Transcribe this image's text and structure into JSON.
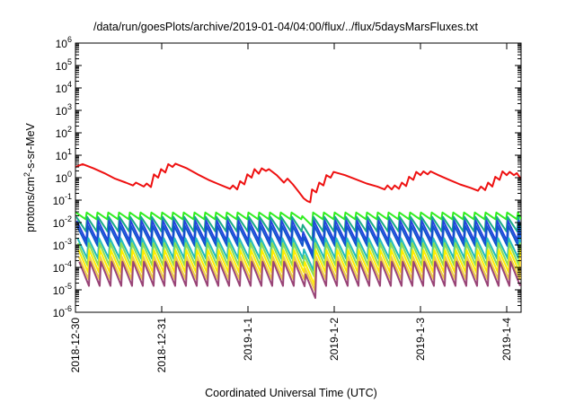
{
  "chart_data": {
    "type": "line",
    "title": "/data/run/goesPlots/archive/2019-01-04/04:00/flux/../flux/5daysMarsFluxes.txt",
    "xlabel": "Coordinated Universal Time (UTC)",
    "ylabel": {
      "prefix": "protons/cm",
      "superscript": "2",
      "suffix": "-s-sr-MeV"
    },
    "yscale": "log",
    "ylim": [
      1e-06,
      1000000.0
    ],
    "yticks": [
      {
        "value": 1e-06,
        "exp": "-6"
      },
      {
        "value": 1e-05,
        "exp": "-5"
      },
      {
        "value": 0.0001,
        "exp": "-4"
      },
      {
        "value": 0.001,
        "exp": "-3"
      },
      {
        "value": 0.01,
        "exp": "-2"
      },
      {
        "value": 0.1,
        "exp": "-1"
      },
      {
        "value": 1,
        "exp": "0"
      },
      {
        "value": 10,
        "exp": "1"
      },
      {
        "value": 100,
        "exp": "2"
      },
      {
        "value": 1000,
        "exp": "3"
      },
      {
        "value": 10000,
        "exp": "4"
      },
      {
        "value": 100000,
        "exp": "5"
      },
      {
        "value": 1000000,
        "exp": "6"
      }
    ],
    "tick_base": "10",
    "xlim": [
      "2018-12-30T00:00",
      "2019-01-04T04:00"
    ],
    "xticks": [
      {
        "label": "2018-12-30",
        "t": "2018-12-30T00:00"
      },
      {
        "label": "2018-12-31",
        "t": "2018-12-31T00:00"
      },
      {
        "label": "2019-1-1",
        "t": "2019-01-01T00:00"
      },
      {
        "label": "2019-1-2",
        "t": "2019-01-02T00:00"
      },
      {
        "label": "2019-1-3",
        "t": "2019-01-03T00:00"
      },
      {
        "label": "2019-1-4",
        "t": "2019-01-04T00:00"
      }
    ],
    "grid": false,
    "legend": "none",
    "series": [
      {
        "color": "#ee1111",
        "points": [
          [
            "2018-12-30T00:00",
            3.0
          ],
          [
            "2018-12-30T02:00",
            4.0
          ],
          [
            "2018-12-30T05:00",
            2.6
          ],
          [
            "2018-12-30T08:00",
            1.6
          ],
          [
            "2018-12-30T11:00",
            0.9
          ],
          [
            "2018-12-30T14:00",
            0.6
          ],
          [
            "2018-12-30T16:00",
            0.45
          ],
          [
            "2018-12-30T16:50",
            0.6
          ],
          [
            "2018-12-30T19:00",
            0.4
          ],
          [
            "2018-12-30T19:50",
            0.55
          ],
          [
            "2018-12-30T21:00",
            0.38
          ],
          [
            "2018-12-30T21:50",
            1.4
          ],
          [
            "2018-12-30T23:00",
            1.0
          ],
          [
            "2018-12-30T23:50",
            2.4
          ],
          [
            "2018-12-31T01:00",
            1.7
          ],
          [
            "2018-12-31T01:50",
            4.0
          ],
          [
            "2018-12-31T03:00",
            3.0
          ],
          [
            "2018-12-31T03:50",
            4.2
          ],
          [
            "2018-12-31T07:00",
            2.6
          ],
          [
            "2018-12-31T10:00",
            1.4
          ],
          [
            "2018-12-31T13:00",
            0.8
          ],
          [
            "2018-12-31T16:00",
            0.5
          ],
          [
            "2018-12-31T19:00",
            0.32
          ],
          [
            "2018-12-31T19:50",
            0.45
          ],
          [
            "2018-12-31T21:00",
            0.3
          ],
          [
            "2018-12-31T21:50",
            0.7
          ],
          [
            "2018-12-31T23:00",
            0.5
          ],
          [
            "2018-12-31T23:50",
            1.4
          ],
          [
            "2019-01-01T01:00",
            1.0
          ],
          [
            "2019-01-01T01:50",
            2.4
          ],
          [
            "2019-01-01T03:00",
            1.5
          ],
          [
            "2019-01-01T03:50",
            2.6
          ],
          [
            "2019-01-01T05:00",
            2.0
          ],
          [
            "2019-01-01T05:50",
            2.4
          ],
          [
            "2019-01-01T08:00",
            1.3
          ],
          [
            "2019-01-01T10:00",
            0.6
          ],
          [
            "2019-01-01T11:00",
            0.9
          ],
          [
            "2019-01-01T12:30",
            0.5
          ],
          [
            "2019-01-01T14:00",
            0.25
          ],
          [
            "2019-01-01T15:30",
            0.12
          ],
          [
            "2019-01-01T16:30",
            0.09
          ],
          [
            "2019-01-01T17:20",
            0.08
          ],
          [
            "2019-01-01T17:50",
            0.3
          ],
          [
            "2019-01-01T19:00",
            0.22
          ],
          [
            "2019-01-01T19:50",
            0.6
          ],
          [
            "2019-01-01T21:00",
            0.45
          ],
          [
            "2019-01-01T21:50",
            1.3
          ],
          [
            "2019-01-01T23:00",
            1.0
          ],
          [
            "2019-01-01T23:50",
            1.8
          ],
          [
            "2019-01-02T03:00",
            1.3
          ],
          [
            "2019-01-02T06:00",
            0.85
          ],
          [
            "2019-01-02T09:00",
            0.55
          ],
          [
            "2019-01-02T12:00",
            0.4
          ],
          [
            "2019-01-02T14:00",
            0.3
          ],
          [
            "2019-01-02T14:50",
            0.45
          ],
          [
            "2019-01-02T16:00",
            0.3
          ],
          [
            "2019-01-02T16:50",
            0.45
          ],
          [
            "2019-01-02T18:00",
            0.32
          ],
          [
            "2019-01-02T18:50",
            0.6
          ],
          [
            "2019-01-02T20:00",
            0.42
          ],
          [
            "2019-01-02T20:50",
            1.1
          ],
          [
            "2019-01-02T22:00",
            0.8
          ],
          [
            "2019-01-02T22:50",
            1.8
          ],
          [
            "2019-01-03T00:00",
            1.3
          ],
          [
            "2019-01-03T00:50",
            1.9
          ],
          [
            "2019-01-03T02:00",
            1.4
          ],
          [
            "2019-01-03T02:50",
            1.9
          ],
          [
            "2019-01-03T05:00",
            1.3
          ],
          [
            "2019-01-03T08:00",
            0.8
          ],
          [
            "2019-01-03T11:00",
            0.5
          ],
          [
            "2019-01-03T14:00",
            0.35
          ],
          [
            "2019-01-03T16:00",
            0.26
          ],
          [
            "2019-01-03T16:50",
            0.4
          ],
          [
            "2019-01-03T18:00",
            0.28
          ],
          [
            "2019-01-03T18:50",
            0.6
          ],
          [
            "2019-01-03T20:00",
            0.4
          ],
          [
            "2019-01-03T20:50",
            1.1
          ],
          [
            "2019-01-03T22:00",
            0.8
          ],
          [
            "2019-01-03T22:50",
            1.9
          ],
          [
            "2019-01-04T00:00",
            1.3
          ],
          [
            "2019-01-04T00:50",
            1.8
          ],
          [
            "2019-01-04T02:00",
            1.3
          ],
          [
            "2019-01-04T02:50",
            1.6
          ],
          [
            "2019-01-04T04:00",
            0.85
          ]
        ]
      },
      {
        "color": "#33ee22",
        "sawtooth": true,
        "peak": 0.028,
        "trough": 0.014,
        "dip_low": 0.007
      },
      {
        "color": "#19aa88",
        "sawtooth": true,
        "peak": 0.018,
        "trough": 0.004,
        "dip_low": 0.0016
      },
      {
        "color": "#2244dd",
        "sawtooth": true,
        "peak": 0.012,
        "trough": 0.0015,
        "dip_low": 0.0004
      },
      {
        "color": "#1155cc",
        "sawtooth": true,
        "peak": 0.007,
        "trough": 0.0009,
        "dip_low": 0.00025
      },
      {
        "color": "#22bbbb",
        "sawtooth": true,
        "peak": 0.002,
        "trough": 0.00025,
        "dip_low": 7e-05
      },
      {
        "color": "#88dd55",
        "sawtooth": true,
        "peak": 0.0012,
        "trough": 0.00012,
        "dip_low": 4e-05
      },
      {
        "color": "#ffee00",
        "sawtooth": true,
        "peak": 0.0006,
        "trough": 6e-05,
        "dip_low": 1.6e-05
      },
      {
        "color": "#eecc44",
        "sawtooth": true,
        "peak": 0.0003,
        "trough": 3e-05,
        "dip_low": 9e-06
      },
      {
        "color": "#994477",
        "sawtooth": true,
        "peak": 0.00018,
        "trough": 1.5e-05,
        "dip_low": 4e-06
      }
    ]
  }
}
